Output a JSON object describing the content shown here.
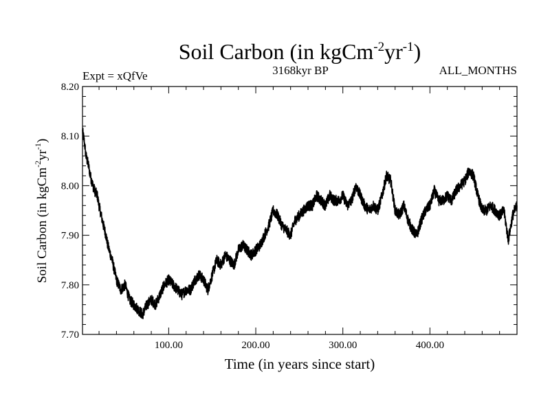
{
  "chart_data": {
    "type": "line",
    "title": "Soil Carbon (in kgCm-2yr-1)",
    "title_parts": {
      "main": "Soil Carbon (in kgCm",
      "sup1": "-2",
      "mid": "yr",
      "sup2": "-1",
      "end": ")"
    },
    "subtitle_left": "Expt = xQfVe",
    "subtitle_center": "3168kyr BP",
    "subtitle_right": "ALL_MONTHS",
    "xlabel": "Time (in years since start)",
    "ylabel": "Soil Carbon (in kgCm-2yr-1)",
    "ylabel_parts": {
      "main": "Soil Carbon (in kgCm",
      "sup1": "-2",
      "mid": "yr",
      "sup2": "-1",
      "end": ")"
    },
    "xlim": [
      1,
      500
    ],
    "ylim": [
      7.7,
      8.2
    ],
    "x_ticks": [
      100,
      200,
      300,
      400
    ],
    "x_tick_labels": [
      "100.00",
      "200.00",
      "300.00",
      "400.00"
    ],
    "y_ticks": [
      7.7,
      7.8,
      7.9,
      8.0,
      8.1,
      8.2
    ],
    "y_tick_labels": [
      "7.70",
      "7.80",
      "7.90",
      "8.00",
      "8.10",
      "8.20"
    ],
    "grid": false,
    "series": [
      {
        "name": "Soil Carbon",
        "color": "#000000",
        "x": [
          1,
          3,
          5,
          8,
          10,
          13,
          15,
          18,
          20,
          25,
          28,
          30,
          35,
          40,
          45,
          50,
          55,
          60,
          65,
          70,
          75,
          80,
          85,
          90,
          95,
          100,
          105,
          110,
          115,
          120,
          125,
          130,
          135,
          140,
          145,
          150,
          155,
          160,
          165,
          170,
          175,
          180,
          185,
          190,
          195,
          200,
          205,
          210,
          215,
          220,
          225,
          230,
          235,
          240,
          245,
          250,
          255,
          260,
          265,
          270,
          275,
          280,
          285,
          290,
          295,
          300,
          305,
          310,
          315,
          320,
          325,
          330,
          335,
          340,
          345,
          350,
          355,
          360,
          365,
          370,
          375,
          380,
          385,
          390,
          395,
          400,
          405,
          410,
          415,
          420,
          425,
          430,
          435,
          440,
          445,
          450,
          455,
          460,
          465,
          470,
          475,
          480,
          485,
          490,
          495,
          500
        ],
        "values": [
          8.11,
          8.09,
          8.06,
          8.04,
          8.02,
          8.0,
          7.99,
          7.98,
          7.96,
          7.92,
          7.9,
          7.88,
          7.85,
          7.81,
          7.79,
          7.8,
          7.77,
          7.76,
          7.75,
          7.74,
          7.76,
          7.77,
          7.76,
          7.78,
          7.8,
          7.81,
          7.8,
          7.79,
          7.78,
          7.79,
          7.79,
          7.81,
          7.82,
          7.81,
          7.79,
          7.82,
          7.85,
          7.84,
          7.86,
          7.85,
          7.84,
          7.87,
          7.88,
          7.87,
          7.86,
          7.87,
          7.88,
          7.9,
          7.92,
          7.95,
          7.94,
          7.92,
          7.91,
          7.9,
          7.93,
          7.94,
          7.95,
          7.96,
          7.96,
          7.98,
          7.97,
          7.96,
          7.98,
          7.97,
          7.97,
          7.98,
          7.96,
          7.97,
          8.0,
          7.98,
          7.96,
          7.95,
          7.96,
          7.95,
          7.98,
          8.02,
          8.01,
          7.95,
          7.94,
          7.96,
          7.93,
          7.91,
          7.9,
          7.93,
          7.95,
          7.96,
          7.99,
          7.97,
          7.97,
          7.98,
          7.97,
          7.99,
          8.0,
          8.01,
          8.03,
          8.02,
          7.98,
          7.95,
          7.95,
          7.96,
          7.95,
          7.94,
          7.95,
          7.89,
          7.94,
          7.96
        ]
      }
    ]
  }
}
